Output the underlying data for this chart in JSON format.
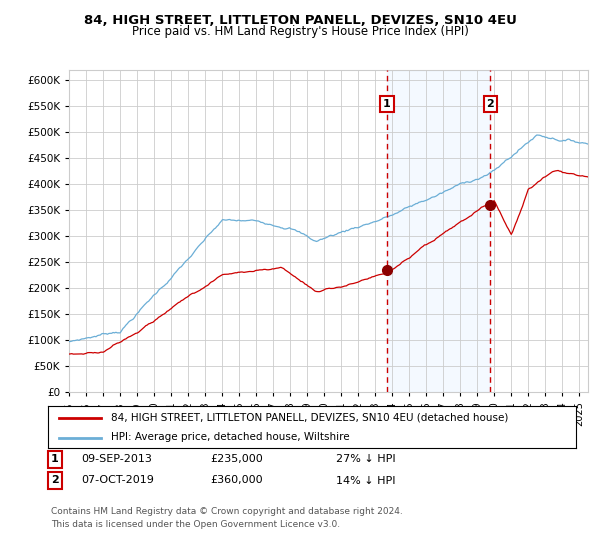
{
  "title": "84, HIGH STREET, LITTLETON PANELL, DEVIZES, SN10 4EU",
  "subtitle": "Price paid vs. HM Land Registry's House Price Index (HPI)",
  "ylim": [
    0,
    620000
  ],
  "yticks": [
    0,
    50000,
    100000,
    150000,
    200000,
    250000,
    300000,
    350000,
    400000,
    450000,
    500000,
    550000,
    600000
  ],
  "xlim_start": 1995.0,
  "xlim_end": 2025.5,
  "event1_x": 2013.69,
  "event1_y": 235000,
  "event2_x": 2019.77,
  "event2_y": 360000,
  "event1_label": "1",
  "event2_label": "2",
  "event1_date": "09-SEP-2013",
  "event1_price": "£235,000",
  "event1_note": "27% ↓ HPI",
  "event2_date": "07-OCT-2019",
  "event2_price": "£360,000",
  "event2_note": "14% ↓ HPI",
  "legend_house": "84, HIGH STREET, LITTLETON PANELL, DEVIZES, SN10 4EU (detached house)",
  "legend_hpi": "HPI: Average price, detached house, Wiltshire",
  "footnote1": "Contains HM Land Registry data © Crown copyright and database right 2024.",
  "footnote2": "This data is licensed under the Open Government Licence v3.0.",
  "hpi_color": "#6baed6",
  "house_color": "#cc0000",
  "marker_color": "#8b0000",
  "highlight_color": "#ddeeff",
  "grid_color": "#cccccc",
  "bg_color": "#ffffff"
}
